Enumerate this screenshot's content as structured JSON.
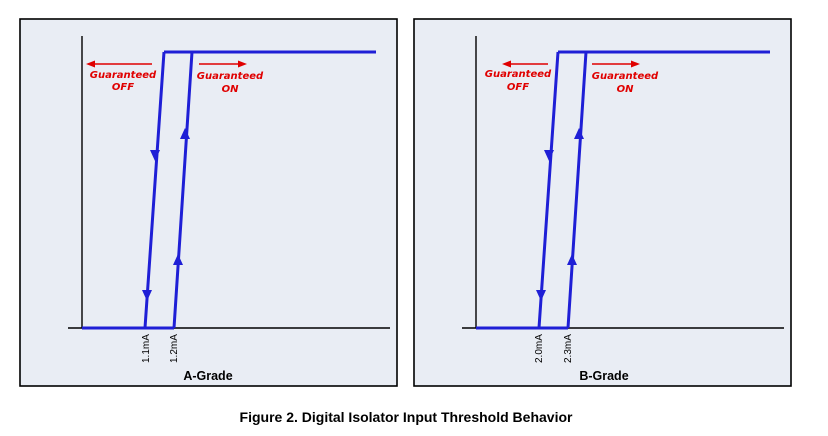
{
  "figure": {
    "caption": "Figure 2. Digital Isolator Input Threshold Behavior"
  },
  "panels": [
    {
      "grade_label": "A-Grade",
      "off_threshold": "1.1mA",
      "on_threshold": "1.2mA",
      "guaranteed_off": {
        "line1": "Guaranteed",
        "line2": "OFF"
      },
      "guaranteed_on": {
        "line1": "Guaranteed",
        "line2": "ON"
      }
    },
    {
      "grade_label": "B-Grade",
      "off_threshold": "2.0mA",
      "on_threshold": "2.3mA",
      "guaranteed_off": {
        "line1": "Guaranteed",
        "line2": "OFF"
      },
      "guaranteed_on": {
        "line1": "Guaranteed",
        "line2": "ON"
      }
    }
  ],
  "colors": {
    "curve": "#1f1fd6",
    "annotation": "#e00000",
    "panel_background": "#e9edf4"
  }
}
